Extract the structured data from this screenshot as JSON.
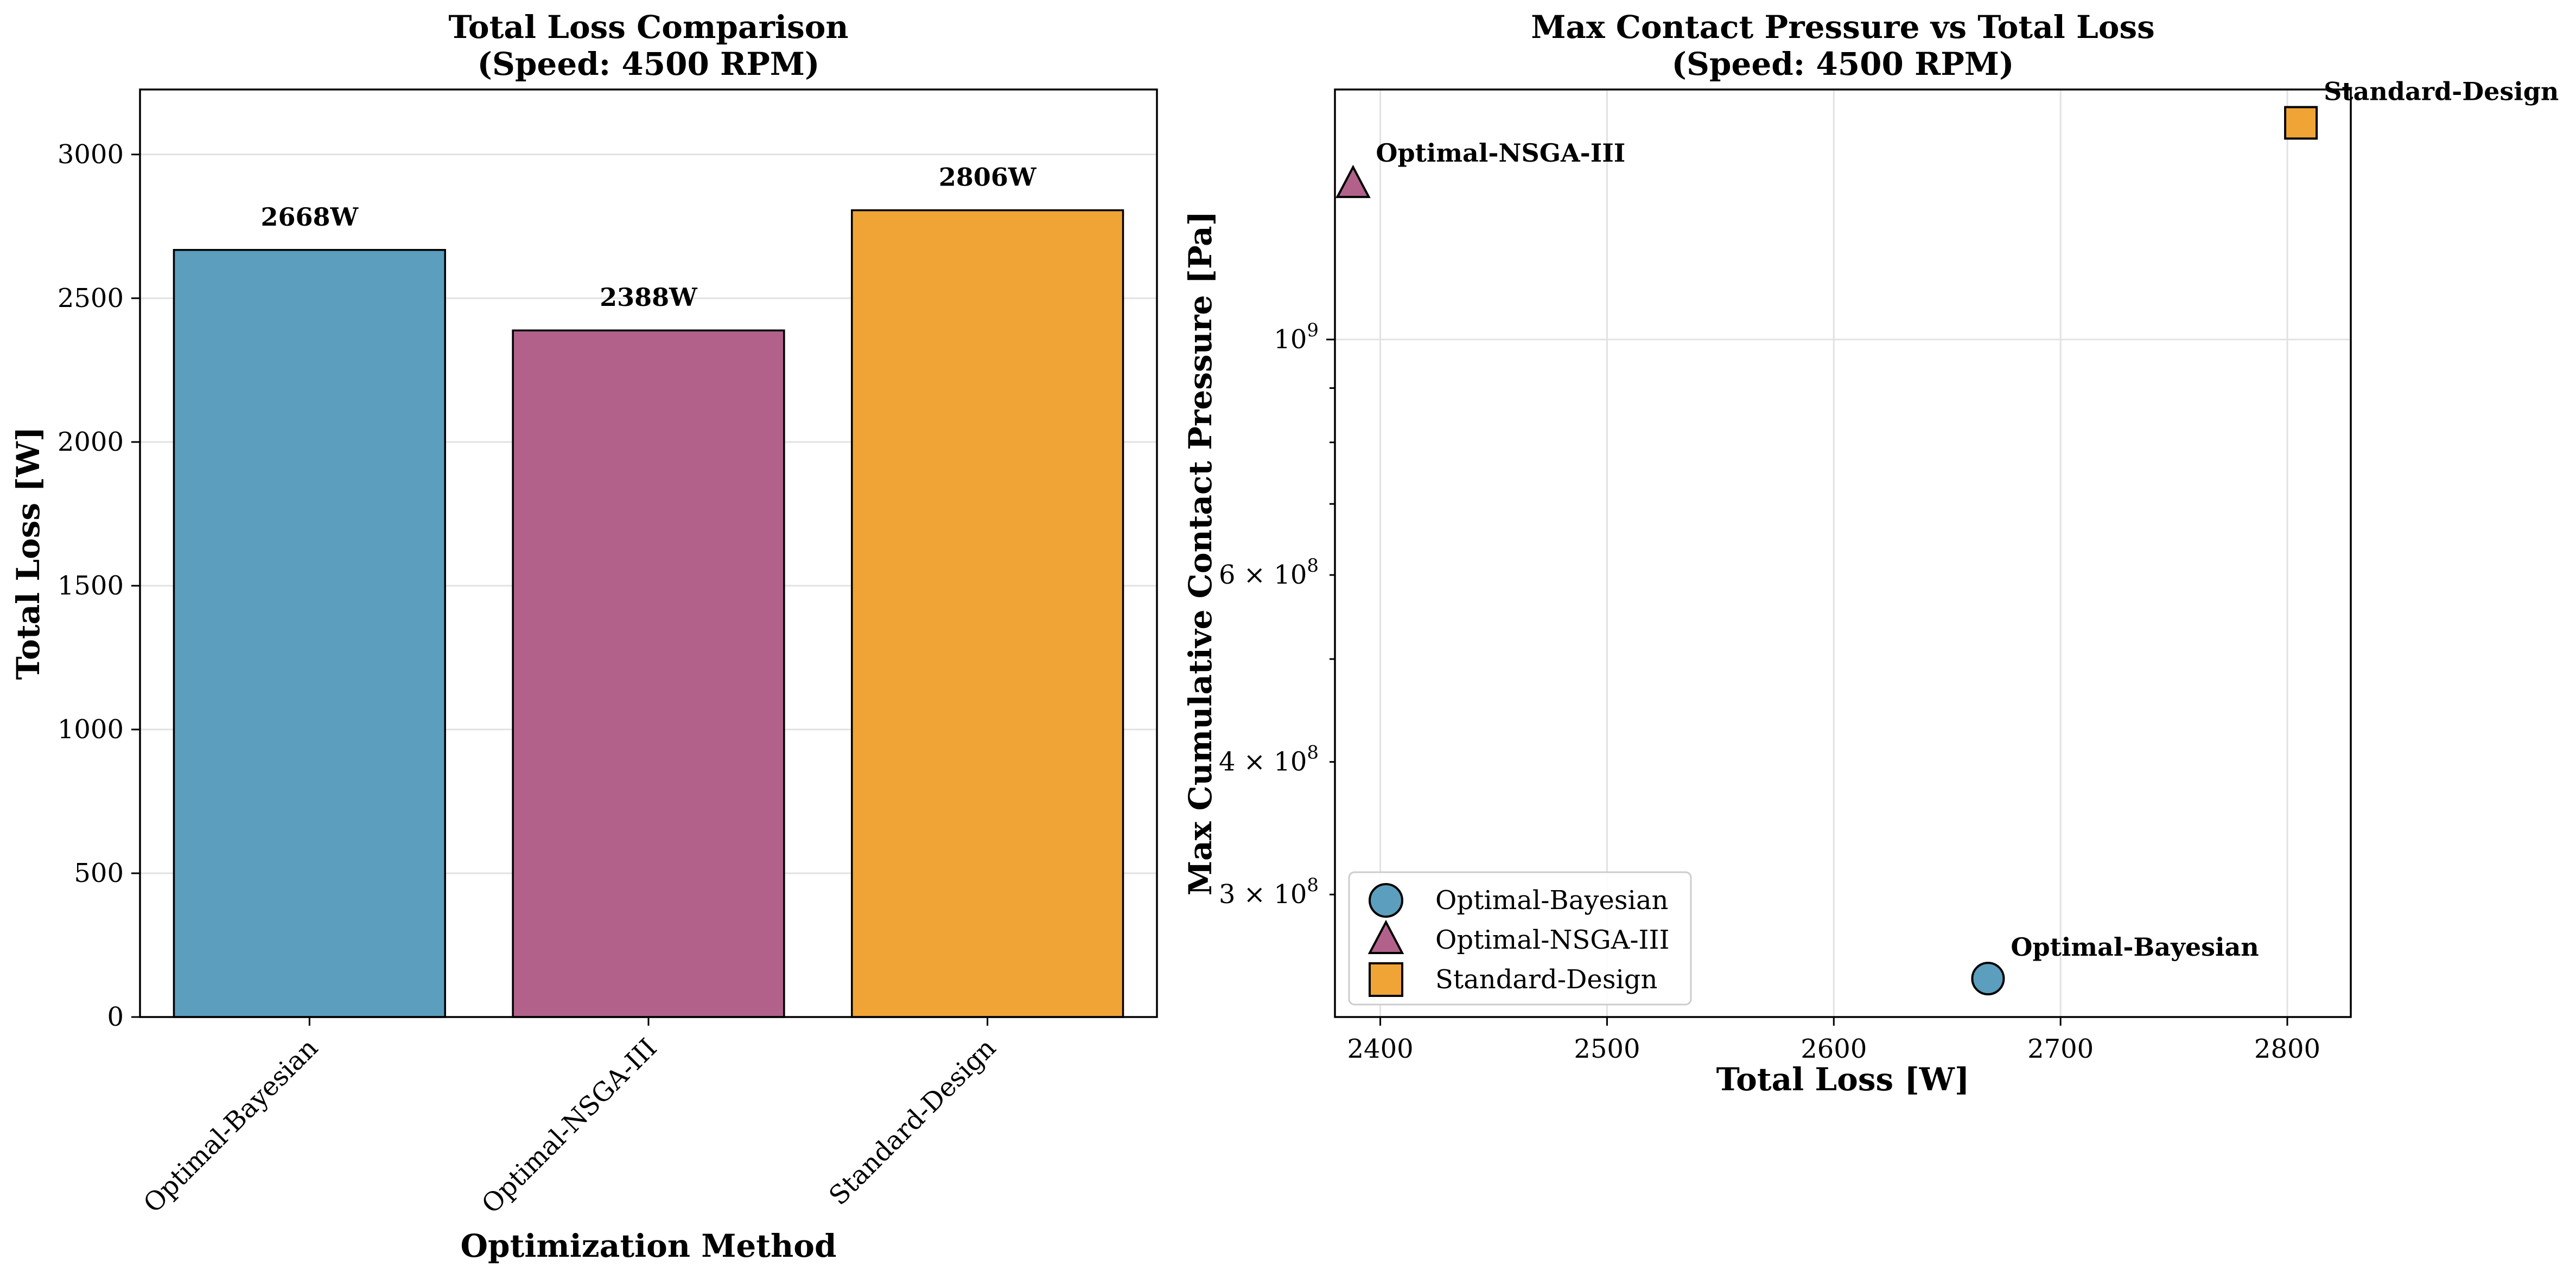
{
  "chart_data": [
    {
      "type": "bar",
      "title": [
        "Total Loss Comparison",
        "(Speed: 4500 RPM)"
      ],
      "xlabel": "Optimization Method",
      "ylabel": "Total Loss [W]",
      "categories": [
        "Optimal-Bayesian",
        "Optimal-NSGA-III",
        "Standard-Design"
      ],
      "values": [
        2668,
        2388,
        2806
      ],
      "data_labels": [
        "2668W",
        "2388W",
        "2806W"
      ],
      "colors": [
        "#5b9ebd",
        "#b2618b",
        "#f0a436"
      ],
      "ylim": [
        0,
        3226
      ],
      "yticks": [
        0,
        500,
        1000,
        1500,
        2000,
        2500,
        3000
      ],
      "grid": true
    },
    {
      "type": "scatter",
      "title": [
        "Max Contact Pressure vs Total Loss",
        "(Speed: 4500 RPM)"
      ],
      "xlabel": "Total Loss [W]",
      "ylabel": "Max Cumulative Contact Pressure [Pa]",
      "yscale": "log",
      "xlim": [
        2380,
        2828
      ],
      "ylim": [
        230000000.0,
        1720000000.0
      ],
      "xticks": [
        2400,
        2500,
        2600,
        2700,
        2800
      ],
      "yticks_major": [
        {
          "value": 1000000000.0,
          "base": "10",
          "exp": "9"
        }
      ],
      "yticks_minor_labeled": [
        {
          "value": 600000000.0,
          "mant": "6 × 10",
          "exp": "8"
        },
        {
          "value": 400000000.0,
          "mant": "4 × 10",
          "exp": "8"
        },
        {
          "value": 300000000.0,
          "mant": "3 × 10",
          "exp": "8"
        }
      ],
      "yticks_minor_unlabeled": [
        500000000.0,
        700000000.0,
        800000000.0,
        900000000.0
      ],
      "series": [
        {
          "name": "Optimal-Bayesian",
          "x": 2668,
          "y": 250000000.0,
          "marker": "circle",
          "color": "#5b9ebd"
        },
        {
          "name": "Optimal-NSGA-III",
          "x": 2388,
          "y": 1400000000.0,
          "marker": "triangle",
          "color": "#b2618b"
        },
        {
          "name": "Standard-Design",
          "x": 2806,
          "y": 1600000000.0,
          "marker": "square",
          "color": "#f0a436"
        }
      ],
      "legend_position": "lower-left",
      "grid": true
    }
  ]
}
